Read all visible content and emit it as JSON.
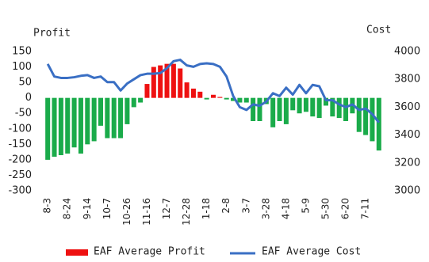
{
  "chart_data": {
    "type": "bar_line",
    "y_label": "Profit",
    "y2_label": "Cost",
    "categories": [
      "8-3",
      null,
      null,
      "8-24",
      null,
      null,
      "9-14",
      null,
      null,
      "10-7",
      null,
      null,
      "10-26",
      null,
      null,
      "11-16",
      null,
      null,
      "12-7",
      null,
      null,
      "12-28",
      null,
      null,
      "1-18",
      null,
      null,
      "2-8",
      null,
      null,
      "3-7",
      null,
      null,
      "3-28",
      null,
      null,
      "4-18",
      null,
      null,
      "5-9",
      null,
      null,
      "5-30",
      null,
      null,
      "6-20",
      null,
      null,
      "7-11",
      null,
      null
    ],
    "series": [
      {
        "name": "EAF Average Profit",
        "kind": "bar",
        "color": "#ee1111",
        "negative_color": "#1aab4a",
        "values": [
          -200,
          -190,
          -185,
          -180,
          -160,
          -180,
          -150,
          -140,
          -90,
          -130,
          -130,
          -130,
          -85,
          -30,
          -15,
          45,
          100,
          105,
          110,
          110,
          95,
          50,
          30,
          20,
          -5,
          10,
          3,
          -5,
          -10,
          -15,
          -15,
          -75,
          -75,
          -20,
          -95,
          -75,
          -85,
          -40,
          -50,
          -45,
          -60,
          -65,
          -25,
          -60,
          -65,
          -75,
          -50,
          -110,
          -120,
          -140,
          -170
        ]
      },
      {
        "name": "EAF Average Cost",
        "kind": "line",
        "axis": "y2",
        "color": "#3a6fc4",
        "values": [
          3910,
          3820,
          3810,
          3810,
          3815,
          3825,
          3830,
          3810,
          3820,
          3780,
          3780,
          3720,
          3770,
          3800,
          3830,
          3840,
          3840,
          3845,
          3880,
          3930,
          3940,
          3900,
          3890,
          3910,
          3915,
          3910,
          3890,
          3820,
          3680,
          3600,
          3580,
          3620,
          3610,
          3640,
          3700,
          3680,
          3740,
          3690,
          3760,
          3700,
          3760,
          3750,
          3650,
          3650,
          3620,
          3600,
          3620,
          3580,
          3590,
          3550,
          3490
        ]
      }
    ],
    "ylim": [
      -300,
      150
    ],
    "yticks": [
      -300,
      -250,
      -200,
      -150,
      -100,
      -50,
      0,
      50,
      100,
      150
    ],
    "y2lim": [
      3000,
      4000
    ],
    "y2ticks": [
      3000,
      3200,
      3400,
      3600,
      3800,
      4000
    ]
  }
}
